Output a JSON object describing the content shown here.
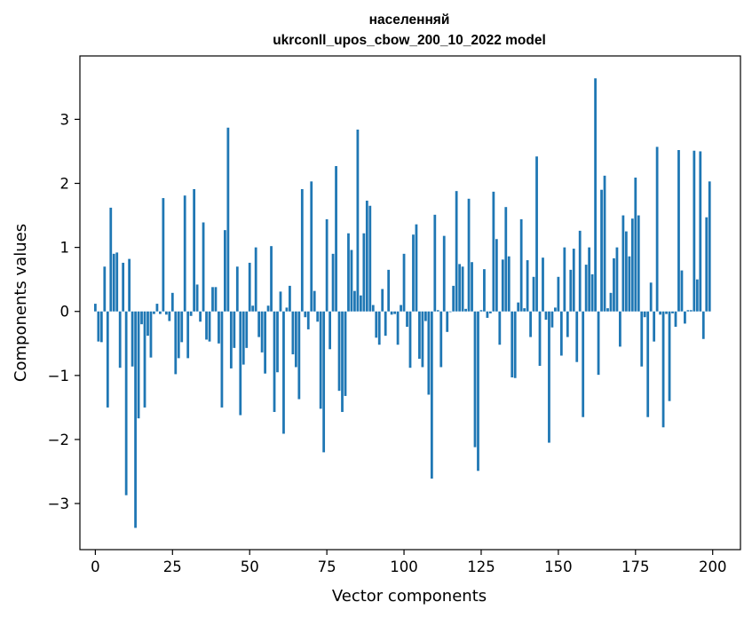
{
  "chart_data": {
    "type": "bar",
    "title": "населенняй",
    "subtitle": "ukrconll_upos_cbow_200_10_2022 model",
    "xlabel": "Vector components",
    "ylabel": "Components values",
    "xlim": [
      -5,
      209
    ],
    "ylim": [
      -3.72,
      3.99
    ],
    "xticks": [
      0,
      25,
      50,
      75,
      100,
      125,
      150,
      175,
      200
    ],
    "yticks": [
      -3,
      -2,
      -1,
      0,
      1,
      2,
      3
    ],
    "ytick_labels": [
      "−3",
      "−2",
      "−1",
      "0",
      "1",
      "2",
      "3"
    ],
    "grid": false,
    "legend": "none",
    "bar_color": "#1f77b4",
    "x": [
      0,
      1,
      2,
      3,
      4,
      5,
      6,
      7,
      8,
      9,
      10,
      11,
      12,
      13,
      14,
      15,
      16,
      17,
      18,
      19,
      20,
      21,
      22,
      23,
      24,
      25,
      26,
      27,
      28,
      29,
      30,
      31,
      32,
      33,
      34,
      35,
      36,
      37,
      38,
      39,
      40,
      41,
      42,
      43,
      44,
      45,
      46,
      47,
      48,
      49,
      50,
      51,
      52,
      53,
      54,
      55,
      56,
      57,
      58,
      59,
      60,
      61,
      62,
      63,
      64,
      65,
      66,
      67,
      68,
      69,
      70,
      71,
      72,
      73,
      74,
      75,
      76,
      77,
      78,
      79,
      80,
      81,
      82,
      83,
      84,
      85,
      86,
      87,
      88,
      89,
      90,
      91,
      92,
      93,
      94,
      95,
      96,
      97,
      98,
      99,
      100,
      101,
      102,
      103,
      104,
      105,
      106,
      107,
      108,
      109,
      110,
      111,
      112,
      113,
      114,
      115,
      116,
      117,
      118,
      119,
      120,
      121,
      122,
      123,
      124,
      125,
      126,
      127,
      128,
      129,
      130,
      131,
      132,
      133,
      134,
      135,
      136,
      137,
      138,
      139,
      140,
      141,
      142,
      143,
      144,
      145,
      146,
      147,
      148,
      149,
      150,
      151,
      152,
      153,
      154,
      155,
      156,
      157,
      158,
      159,
      160,
      161,
      162,
      163,
      164,
      165,
      166,
      167,
      168,
      169,
      170,
      171,
      172,
      173,
      174,
      175,
      176,
      177,
      178,
      179,
      180,
      181,
      182,
      183,
      184,
      185,
      186,
      187,
      188,
      189,
      190,
      191,
      192,
      193,
      194,
      195,
      196,
      197,
      198,
      199
    ],
    "values": [
      0.12,
      -0.47,
      -0.48,
      0.7,
      -1.5,
      1.62,
      0.9,
      0.92,
      -0.88,
      0.76,
      -2.87,
      0.82,
      -0.86,
      -3.38,
      -1.67,
      -0.2,
      -1.5,
      -0.38,
      -0.72,
      -0.04,
      0.12,
      -0.04,
      1.77,
      -0.05,
      -0.15,
      0.29,
      -0.98,
      -0.73,
      -0.48,
      1.81,
      -0.73,
      -0.07,
      1.91,
      0.42,
      -0.16,
      1.39,
      -0.44,
      -0.47,
      0.38,
      0.38,
      -0.5,
      -1.5,
      1.27,
      2.87,
      -0.89,
      -0.57,
      0.7,
      -1.62,
      -0.83,
      -0.57,
      0.76,
      0.09,
      1.0,
      -0.4,
      -0.64,
      -0.97,
      0.09,
      1.02,
      -1.57,
      -0.95,
      0.31,
      -1.91,
      0.06,
      0.4,
      -0.67,
      -0.87,
      -1.37,
      1.91,
      -0.09,
      -0.28,
      2.03,
      0.32,
      -0.16,
      -1.52,
      -2.2,
      1.44,
      -0.59,
      0.9,
      2.27,
      -1.24,
      -1.57,
      -1.32,
      1.22,
      0.96,
      0.32,
      2.84,
      0.25,
      1.22,
      1.73,
      1.65,
      0.1,
      -0.41,
      -0.52,
      0.35,
      -0.38,
      0.65,
      -0.05,
      -0.04,
      -0.52,
      0.1,
      0.9,
      -0.24,
      -0.88,
      1.2,
      1.36,
      -0.74,
      -0.87,
      -0.15,
      -1.3,
      -2.61,
      1.51,
      0.02,
      -0.87,
      1.18,
      -0.32,
      -0.01,
      0.4,
      1.88,
      0.74,
      0.7,
      0.04,
      1.76,
      0.77,
      -2.12,
      -2.49,
      0.02,
      0.66,
      -0.1,
      -0.03,
      1.87,
      1.13,
      -0.52,
      0.81,
      1.63,
      0.86,
      -1.03,
      -1.04,
      0.14,
      1.44,
      0.05,
      0.8,
      -0.4,
      0.54,
      2.42,
      -0.85,
      0.84,
      -0.13,
      -2.05,
      -0.25,
      0.06,
      0.54,
      -0.69,
      1.0,
      -0.4,
      0.65,
      0.98,
      -0.79,
      1.26,
      -1.65,
      0.73,
      1.0,
      0.58,
      3.64,
      -0.99,
      1.9,
      2.12,
      0.05,
      0.29,
      0.83,
      1.0,
      -0.55,
      1.5,
      1.25,
      0.86,
      1.45,
      2.09,
      1.5,
      -0.86,
      -0.09,
      -1.65,
      0.45,
      -0.47,
      2.57,
      -0.05,
      -1.81,
      -0.04,
      -1.4,
      -0.03,
      -0.24,
      2.52,
      0.64,
      -0.19,
      0.02,
      0.02,
      2.51,
      0.5,
      2.5,
      -0.43,
      1.47,
      2.03
    ]
  }
}
